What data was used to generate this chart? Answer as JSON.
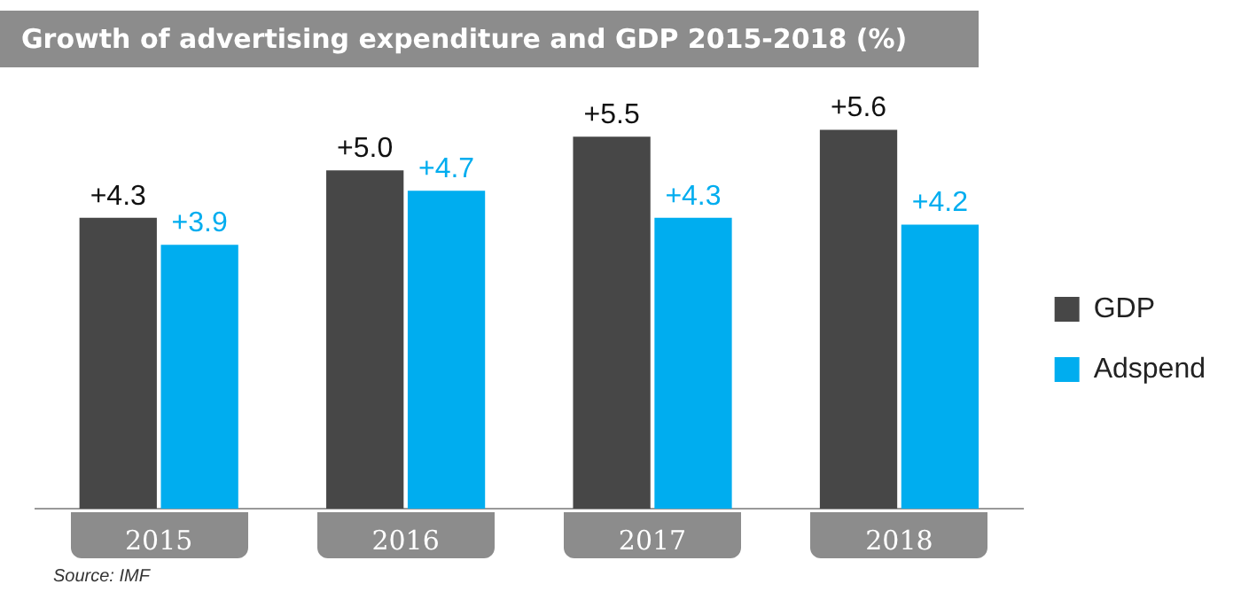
{
  "chart_data": {
    "type": "bar",
    "title": "Growth of advertising expenditure and GDP 2015-2018 (%)",
    "categories": [
      "2015",
      "2016",
      "2017",
      "2018"
    ],
    "series": [
      {
        "name": "GDP",
        "color": "#474747",
        "values": [
          4.3,
          5.0,
          5.5,
          5.6
        ],
        "value_labels": [
          "+4.3",
          "+5.0",
          "+5.5",
          "+5.6"
        ]
      },
      {
        "name": "Adspend",
        "color": "#00adef",
        "values": [
          3.9,
          4.7,
          4.3,
          4.2
        ],
        "value_labels": [
          "+3.9",
          "+4.7",
          "+4.3",
          "+4.2"
        ]
      }
    ],
    "legend": "right",
    "grid": false,
    "annotations": [
      "Source: IMF"
    ]
  }
}
